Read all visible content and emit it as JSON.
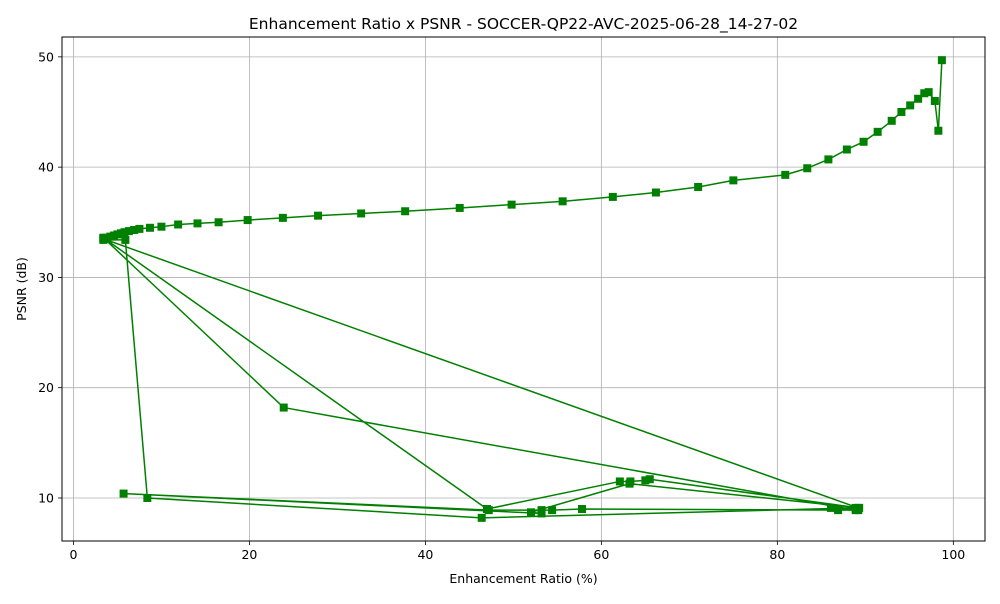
{
  "chart_data": {
    "type": "line",
    "title": "Enhancement Ratio x PSNR - SOCCER-QP22-AVC-2025-06-28_14-27-02",
    "xlabel": "Enhancement Ratio (%)",
    "ylabel": "PSNR (dB)",
    "xlim": [
      -1.3,
      103.6
    ],
    "ylim": [
      6.1,
      51.8
    ],
    "xticks": [
      0,
      20,
      40,
      60,
      80,
      100
    ],
    "yticks": [
      10,
      20,
      30,
      40,
      50
    ],
    "grid": true,
    "line_color": "#008000",
    "marker": "square",
    "series": [
      {
        "x": [
          98.7,
          98.3,
          97.9,
          97.2,
          96.7,
          96.0,
          95.1,
          94.1,
          93.0,
          91.4,
          89.8,
          87.9,
          85.8,
          83.4,
          80.9,
          75.0,
          71.0,
          66.2,
          61.3,
          55.6,
          49.8,
          43.9,
          37.7,
          32.7,
          27.8,
          23.8,
          19.8,
          16.5,
          14.1,
          11.9,
          10.0,
          8.7,
          7.5,
          6.9,
          6.3,
          5.8,
          5.4,
          5.0,
          4.6,
          4.2,
          3.8,
          3.5,
          3.4,
          5.9,
          8.4,
          46.4,
          88.9,
          89.2,
          86.1,
          86.9,
          89.3,
          63.2,
          52.0,
          53.2,
          5.7,
          47.2,
          53.2,
          54.4,
          57.8,
          88.9,
          23.9,
          3.4,
          47.0,
          62.1,
          63.3,
          65.0,
          65.5,
          89.2,
          3.4
        ],
        "y": [
          49.7,
          43.3,
          46.0,
          46.8,
          46.7,
          46.2,
          45.6,
          45.0,
          44.2,
          43.2,
          42.3,
          41.6,
          40.7,
          39.9,
          39.3,
          38.8,
          38.2,
          37.7,
          37.3,
          36.9,
          36.6,
          36.3,
          36.0,
          35.8,
          35.6,
          35.4,
          35.2,
          35.0,
          34.9,
          34.8,
          34.6,
          34.5,
          34.4,
          34.3,
          34.2,
          34.1,
          34.0,
          33.9,
          33.8,
          33.7,
          33.6,
          33.5,
          33.4,
          33.4,
          10.0,
          8.2,
          9.1,
          8.9,
          9.1,
          8.9,
          9.1,
          11.3,
          8.7,
          8.6,
          10.4,
          8.9,
          8.9,
          8.9,
          9.0,
          8.9,
          18.2,
          33.6,
          9.0,
          11.5,
          11.5,
          11.6,
          11.7,
          9.1,
          33.5
        ]
      }
    ]
  }
}
